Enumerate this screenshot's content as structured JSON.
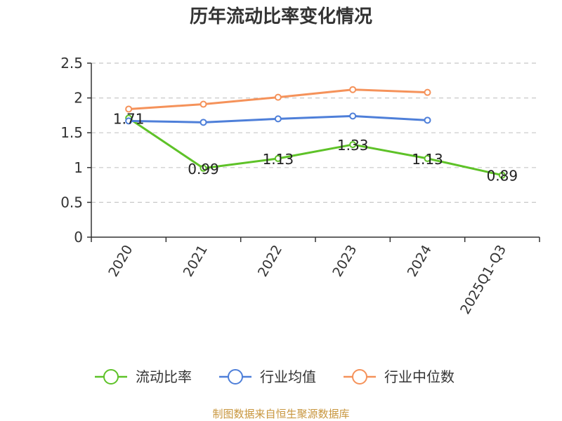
{
  "chart_data": {
    "type": "line",
    "title": "历年流动比率变化情况",
    "categories": [
      "2020",
      "2021",
      "2022",
      "2023",
      "2024",
      "2025Q1-Q3"
    ],
    "ylim": [
      0,
      2.5
    ],
    "yticks": [
      "0",
      "0.5",
      "1",
      "1.5",
      "2",
      "2.5"
    ],
    "grid": true,
    "legend_position": "bottom",
    "series": [
      {
        "name": "流动比率",
        "color": "#5ec228",
        "values": [
          1.71,
          0.99,
          1.13,
          1.33,
          1.13,
          0.89
        ],
        "labels": [
          "1.71",
          "0.99",
          "1.13",
          "1.33",
          "1.13",
          "0.89"
        ]
      },
      {
        "name": "行业均值",
        "color": "#4e7fd9",
        "values": [
          1.67,
          1.65,
          1.7,
          1.74,
          1.68,
          null
        ]
      },
      {
        "name": "行业中位数",
        "color": "#f5925a",
        "values": [
          1.84,
          1.91,
          2.01,
          2.12,
          2.08,
          null
        ]
      }
    ]
  },
  "source": "制图数据来自恒生聚源数据库"
}
